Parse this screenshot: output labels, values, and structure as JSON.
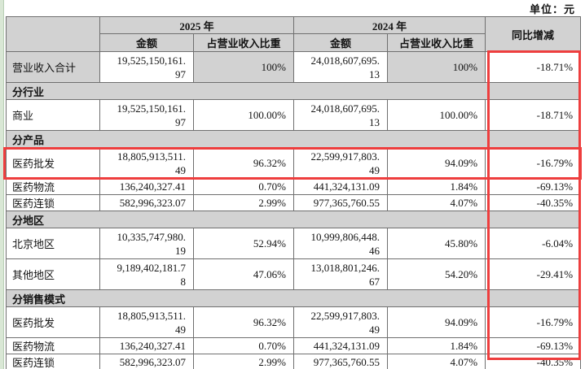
{
  "meta": {
    "unit_label": "单位：元"
  },
  "colors": {
    "highlight_red": "#ee3e3e",
    "header_gray": "#d2d2d2"
  },
  "table": {
    "header": {
      "year_2025": "2025 年",
      "year_2024": "2024 年",
      "yoy_label": "同比增减",
      "amount_2025": "金额",
      "share_2025": "占营业收入比重",
      "amount_2024": "金额",
      "share_2024": "占营业收入比重"
    },
    "rows": [
      {
        "type": "data",
        "shaded": true,
        "label": "营业收入合计",
        "amount_2025": "19,525,150,161.97",
        "share_2025": "100%",
        "amount_2024": "24,018,607,695.13",
        "share_2024": "100%",
        "yoy": "-18.71%"
      },
      {
        "type": "section",
        "label": "分行业"
      },
      {
        "type": "data",
        "label": "商业",
        "amount_2025": "19,525,150,161.97",
        "share_2025": "100.00%",
        "amount_2024": "24,018,607,695.13",
        "share_2024": "100.00%",
        "yoy": "-18.71%"
      },
      {
        "type": "section",
        "label": "分产品"
      },
      {
        "type": "data",
        "highlighted": true,
        "label": "医药批发",
        "amount_2025": "18,805,913,511.49",
        "share_2025": "96.32%",
        "amount_2024": "22,599,917,803.49",
        "share_2024": "94.09%",
        "yoy": "-16.79%"
      },
      {
        "type": "data",
        "label": "医药物流",
        "amount_2025": "136,240,327.41",
        "share_2025": "0.70%",
        "amount_2024": "441,324,131.09",
        "share_2024": "1.84%",
        "yoy": "-69.13%"
      },
      {
        "type": "data",
        "label": "医药连锁",
        "amount_2025": "582,996,323.07",
        "share_2025": "2.99%",
        "amount_2024": "977,365,760.55",
        "share_2024": "4.07%",
        "yoy": "-40.35%"
      },
      {
        "type": "section",
        "label": "分地区"
      },
      {
        "type": "data",
        "label": "北京地区",
        "amount_2025": "10,335,747,980.19",
        "share_2025": "52.94%",
        "amount_2024": "10,999,806,448.46",
        "share_2024": "45.80%",
        "yoy": "-6.04%"
      },
      {
        "type": "data",
        "label": "其他地区",
        "amount_2025": "9,189,402,181.78",
        "share_2025": "47.06%",
        "amount_2024": "13,018,801,246.67",
        "share_2024": "54.20%",
        "yoy": "-29.41%"
      },
      {
        "type": "section",
        "label": "分销售模式"
      },
      {
        "type": "data",
        "label": "医药批发",
        "amount_2025": "18,805,913,511.49",
        "share_2025": "96.32%",
        "amount_2024": "22,599,917,803.49",
        "share_2024": "94.09%",
        "yoy": "-16.79%"
      },
      {
        "type": "data",
        "label": "医药物流",
        "amount_2025": "136,240,327.41",
        "share_2025": "0.70%",
        "amount_2024": "441,324,131.09",
        "share_2024": "1.84%",
        "yoy": "-69.13%"
      },
      {
        "type": "data",
        "label": "医药连锁",
        "amount_2025": "582,996,323.07",
        "share_2025": "2.99%",
        "amount_2024": "977,365,760.55",
        "share_2024": "4.07%",
        "yoy": "-40.35%"
      }
    ]
  },
  "annotations": {
    "yoy_column_highlight": "同比增减 column outlined in red",
    "row_highlight": "医药批发 (分产品) row outlined in red"
  }
}
